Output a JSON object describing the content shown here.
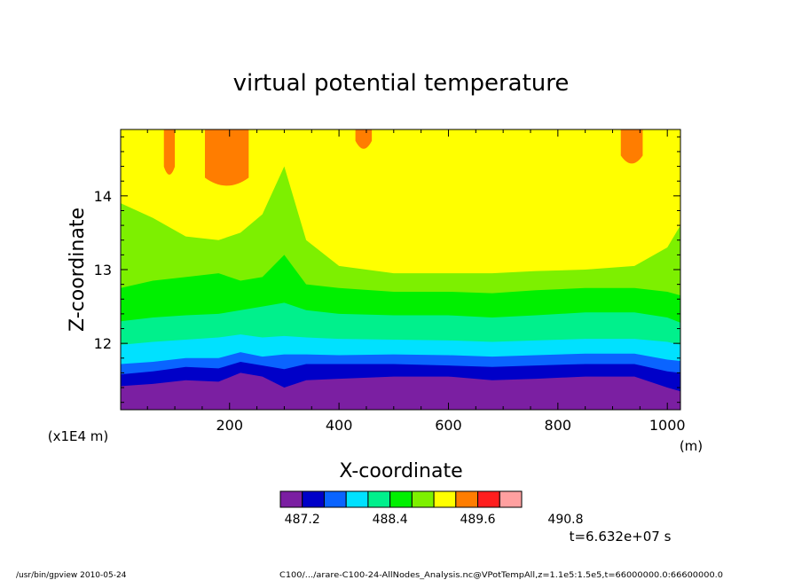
{
  "chart_data": {
    "type": "heatmap",
    "title": "virtual potential temperature",
    "xlabel": "X-coordinate",
    "ylabel": "Z-coordinate",
    "x_unit": "(m)",
    "y_unit": "(x1E4 m)",
    "xlim": [
      1,
      1024
    ],
    "ylim": [
      11.1,
      14.9
    ],
    "x_ticks": [
      {
        "value": 200,
        "label": "200"
      },
      {
        "value": 400,
        "label": "400"
      },
      {
        "value": 600,
        "label": "600"
      },
      {
        "value": 800,
        "label": "800"
      },
      {
        "value": 1000,
        "label": "1000"
      }
    ],
    "y_ticks": [
      {
        "value": 12,
        "label": "12"
      },
      {
        "value": 13,
        "label": "13"
      },
      {
        "value": 14,
        "label": "14"
      }
    ],
    "colorbar": {
      "levels": [
        487.2,
        487.5,
        487.8,
        488.1,
        488.4,
        488.7,
        489.0,
        489.3,
        489.6,
        489.9,
        490.2,
        490.5,
        490.8
      ],
      "colors": [
        "#7b1fa2",
        "#0000c8",
        "#0a64ff",
        "#00e1ff",
        "#00f08c",
        "#00f000",
        "#7df000",
        "#ffff00",
        "#ff7d00",
        "#ff1e1e",
        "#ffa0a0"
      ],
      "tick_labels": [
        "487.2",
        "488.4",
        "489.6",
        "490.8"
      ]
    },
    "contour_boundaries": [
      {
        "level": 487.5,
        "x": [
          1,
          60,
          120,
          180,
          220,
          260,
          300,
          340,
          400,
          500,
          600,
          680,
          760,
          850,
          940,
          1000,
          1024
        ],
        "z": [
          11.42,
          11.45,
          11.5,
          11.48,
          11.6,
          11.55,
          11.4,
          11.5,
          11.52,
          11.55,
          11.55,
          11.5,
          11.52,
          11.55,
          11.55,
          11.4,
          11.35
        ]
      },
      {
        "level": 487.8,
        "x": [
          1,
          60,
          120,
          180,
          220,
          260,
          300,
          340,
          400,
          500,
          600,
          680,
          760,
          850,
          940,
          1000,
          1024
        ],
        "z": [
          11.58,
          11.62,
          11.68,
          11.66,
          11.75,
          11.7,
          11.65,
          11.72,
          11.72,
          11.72,
          11.7,
          11.68,
          11.7,
          11.72,
          11.72,
          11.62,
          11.6
        ]
      },
      {
        "level": 488.1,
        "x": [
          1,
          60,
          120,
          180,
          220,
          260,
          300,
          340,
          400,
          500,
          600,
          680,
          760,
          850,
          940,
          1000,
          1024
        ],
        "z": [
          11.72,
          11.75,
          11.8,
          11.8,
          11.88,
          11.82,
          11.85,
          11.85,
          11.84,
          11.85,
          11.84,
          11.82,
          11.84,
          11.86,
          11.86,
          11.78,
          11.76
        ]
      },
      {
        "level": 488.4,
        "x": [
          1,
          60,
          120,
          180,
          220,
          260,
          300,
          340,
          400,
          500,
          600,
          680,
          760,
          850,
          940,
          1000,
          1024
        ],
        "z": [
          11.98,
          12.02,
          12.05,
          12.08,
          12.12,
          12.08,
          12.1,
          12.08,
          12.06,
          12.05,
          12.04,
          12.02,
          12.04,
          12.06,
          12.06,
          12.02,
          11.98
        ]
      },
      {
        "level": 488.7,
        "x": [
          1,
          60,
          120,
          180,
          220,
          260,
          300,
          340,
          400,
          500,
          600,
          680,
          760,
          850,
          940,
          1000,
          1024
        ],
        "z": [
          12.3,
          12.35,
          12.38,
          12.4,
          12.45,
          12.5,
          12.55,
          12.45,
          12.4,
          12.38,
          12.38,
          12.35,
          12.38,
          12.42,
          12.42,
          12.35,
          12.28
        ]
      },
      {
        "level": 489.0,
        "x": [
          1,
          60,
          120,
          180,
          220,
          260,
          300,
          340,
          400,
          500,
          600,
          680,
          760,
          850,
          940,
          1000,
          1024
        ],
        "z": [
          12.75,
          12.85,
          12.9,
          12.95,
          12.85,
          12.9,
          13.2,
          12.8,
          12.75,
          12.7,
          12.7,
          12.68,
          12.72,
          12.75,
          12.75,
          12.7,
          12.65
        ]
      },
      {
        "level": 489.3,
        "x": [
          1,
          60,
          120,
          180,
          220,
          260,
          300,
          340,
          400,
          500,
          600,
          680,
          760,
          850,
          940,
          1000,
          1024
        ],
        "z": [
          13.9,
          13.7,
          13.45,
          13.4,
          13.5,
          13.75,
          14.4,
          13.4,
          13.05,
          12.95,
          12.95,
          12.95,
          12.98,
          13.0,
          13.05,
          13.3,
          13.6
        ]
      }
    ],
    "warm_patches": [
      {
        "x": [
          80,
          100
        ],
        "z_bottom": 14.3
      },
      {
        "x": [
          155,
          235
        ],
        "z_bottom": 14.15
      },
      {
        "x": [
          430,
          460
        ],
        "z_bottom": 14.65
      },
      {
        "x": [
          915,
          955
        ],
        "z_bottom": 14.45
      }
    ],
    "annotation_time": "t=6.632e+07 s"
  },
  "footer": {
    "left": "/usr/bin/gpview   2010-05-24",
    "right": "C100/.../arare-C100-24-AllNodes_Analysis.nc@VPotTempAll,z=1.1e5:1.5e5,t=66000000.0:66600000.0"
  }
}
